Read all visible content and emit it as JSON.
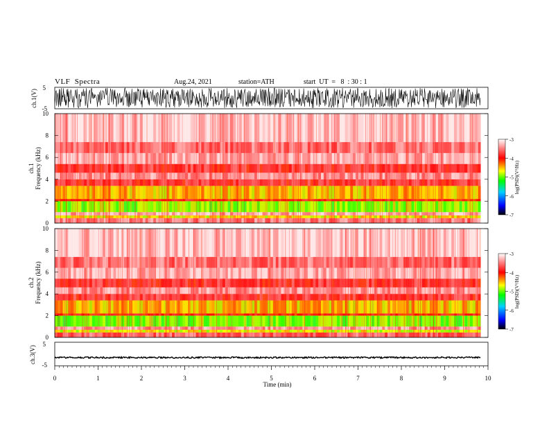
{
  "header": {
    "title": "VLF  Spectra",
    "date": "Aug.24, 2021",
    "station": "station=ATH",
    "start": "start  UT  =   8  : 30 : 1"
  },
  "chart_data": [
    {
      "type": "line",
      "id": "ch1-wave",
      "ylabel": "ch.1(V)",
      "ylim": [
        -5,
        5
      ],
      "yticks": [
        "5",
        "-5"
      ],
      "xlim": [
        0,
        10
      ],
      "x_data_end": 9.83,
      "description_level": "dense waveform filling most of the range"
    },
    {
      "type": "heatmap",
      "id": "ch1-spec",
      "ylabel": "Frequency  (kHz)",
      "ylabel2": "ch.1",
      "ylim": [
        0,
        10
      ],
      "yticks": [
        "0",
        "2",
        "4",
        "6",
        "8",
        "10"
      ],
      "xlim": [
        0,
        10
      ],
      "x_data_end": 9.83,
      "colorbar": {
        "label": "log(PSD)(V²/Hz)",
        "range": [
          -7,
          -3
        ],
        "ticks": [
          "-3",
          "-4",
          "-5",
          "-6",
          "-7"
        ]
      },
      "bands": [
        {
          "from": 0.0,
          "to": 0.45,
          "level": -3.5
        },
        {
          "from": 0.45,
          "to": 0.7,
          "level": -4.6
        },
        {
          "from": 0.7,
          "to": 1.0,
          "level": -3.3
        },
        {
          "from": 1.0,
          "to": 2.0,
          "level": -4.9
        },
        {
          "from": 2.0,
          "to": 2.2,
          "level": -4.0
        },
        {
          "from": 2.2,
          "to": 3.4,
          "level": -4.5
        },
        {
          "from": 3.4,
          "to": 4.0,
          "level": -3.8
        },
        {
          "from": 4.0,
          "to": 4.6,
          "level": -3.4
        },
        {
          "from": 4.6,
          "to": 5.4,
          "level": -3.8
        },
        {
          "from": 5.4,
          "to": 6.4,
          "level": -3.3
        },
        {
          "from": 6.4,
          "to": 7.4,
          "level": -3.55
        },
        {
          "from": 7.4,
          "to": 10.0,
          "level": -3.2
        }
      ]
    },
    {
      "type": "heatmap",
      "id": "ch2-spec",
      "ylabel": "Frequency  (kHz)",
      "ylabel2": "ch.2",
      "ylim": [
        0,
        10
      ],
      "yticks": [
        "0",
        "2",
        "4",
        "6",
        "8",
        "10"
      ],
      "xlim": [
        0,
        10
      ],
      "x_data_end": 9.83,
      "colorbar": {
        "label": "log(PSD)(V²/Hz)",
        "range": [
          -7,
          -3
        ],
        "ticks": [
          "-3",
          "-4",
          "-5",
          "-6",
          "-7"
        ]
      },
      "bands": [
        {
          "from": 0.0,
          "to": 0.45,
          "level": -3.6
        },
        {
          "from": 0.45,
          "to": 0.7,
          "level": -4.7
        },
        {
          "from": 0.7,
          "to": 1.0,
          "level": -3.4
        },
        {
          "from": 1.0,
          "to": 2.0,
          "level": -4.95
        },
        {
          "from": 2.0,
          "to": 2.2,
          "level": -4.0
        },
        {
          "from": 2.2,
          "to": 3.4,
          "level": -4.5
        },
        {
          "from": 3.4,
          "to": 4.0,
          "level": -3.8
        },
        {
          "from": 4.0,
          "to": 4.6,
          "level": -3.4
        },
        {
          "from": 4.6,
          "to": 5.4,
          "level": -3.8
        },
        {
          "from": 5.4,
          "to": 6.4,
          "level": -3.3
        },
        {
          "from": 6.4,
          "to": 7.4,
          "level": -3.55
        },
        {
          "from": 7.4,
          "to": 10.0,
          "level": -3.2
        }
      ]
    },
    {
      "type": "line",
      "id": "ch3-wave",
      "ylabel": "ch.3(V)",
      "ylim": [
        -5,
        5
      ],
      "yticks": [
        "5",
        "-5"
      ],
      "xlim": [
        0,
        10
      ],
      "x_data_end": 9.83,
      "xlabel": "Time  (min)",
      "xticks": [
        "0",
        "1",
        "2",
        "3",
        "4",
        "5",
        "6",
        "7",
        "8",
        "9",
        "10"
      ],
      "signal_level": -1.5
    }
  ],
  "colors": {
    "scale": [
      "#000000",
      "#0000ff",
      "#00ffff",
      "#00ff00",
      "#ffff00",
      "#ff0000",
      "#ffffff"
    ],
    "axis": "#000000"
  }
}
